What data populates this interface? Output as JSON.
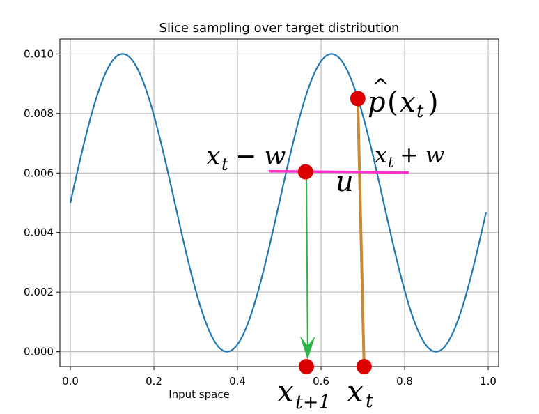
{
  "chart_data": {
    "type": "line",
    "title": "Slice sampling over target distribution",
    "xlabel": "Input space",
    "ylabel": "",
    "xlim": [
      -0.025,
      1.025
    ],
    "ylim": [
      -0.0005,
      0.0105
    ],
    "xticks": [
      0.0,
      0.2,
      0.4,
      0.6,
      0.8,
      1.0
    ],
    "xtick_labels": [
      "0.0",
      "0.2",
      "0.4",
      "0.6",
      "0.8",
      "1.0"
    ],
    "yticks": [
      0.0,
      0.002,
      0.004,
      0.006,
      0.008,
      0.01
    ],
    "ytick_labels": [
      "0.000",
      "0.002",
      "0.004",
      "0.006",
      "0.008",
      "0.010"
    ],
    "grid": true,
    "series": [
      {
        "function": "0.005 + 0.005*sin(4*pi*x)",
        "x_range": [
          0.0,
          0.995
        ],
        "color": "#1f77b4"
      }
    ],
    "slice": {
      "y": 0.00604,
      "x_start": 0.475,
      "x_end": 0.81,
      "color": "#ff33cc"
    },
    "vertical_line": {
      "x_top": 0.688,
      "y_top": 0.0085,
      "x_bottom": 0.703,
      "y_bottom": -0.0005,
      "color": "#c68a38"
    },
    "arrow": {
      "x_start": 0.565,
      "y_start": 0.00604,
      "x_end": 0.568,
      "y_end": -0.0005,
      "color": "#2db54a"
    },
    "points": [
      {
        "x": 0.688,
        "y": 0.0085
      },
      {
        "x": 0.563,
        "y": 0.00604
      },
      {
        "x": 0.565,
        "y": -0.0005
      },
      {
        "x": 0.703,
        "y": -0.0005
      }
    ],
    "point_color": "#dd0000",
    "annotations": {
      "p_hat": {
        "base": "p",
        "accent": "^",
        "open": "(",
        "var": "x",
        "sub": "t",
        "close": ")"
      },
      "left_bound": {
        "var": "x",
        "sub": "t",
        "op": "− w"
      },
      "right_bound": {
        "var": "x",
        "sub": "t",
        "op": "+ w"
      },
      "u": "u",
      "x_next": {
        "var": "x",
        "sub": "t+1"
      },
      "x_t": {
        "var": "x",
        "sub": "t"
      }
    }
  }
}
